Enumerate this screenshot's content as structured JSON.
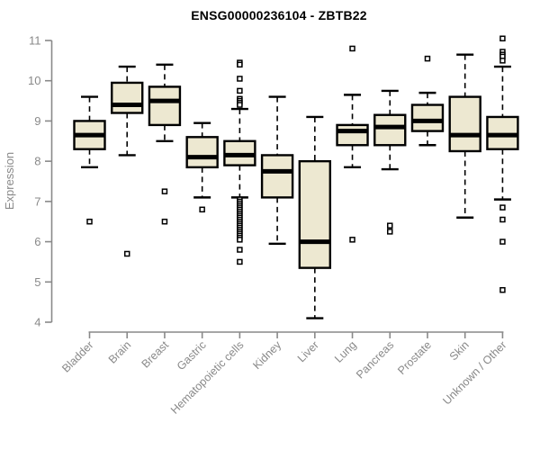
{
  "title": "ENSG00000236104 - ZBTB22",
  "chart_data": {
    "type": "boxplot",
    "title": "ENSG00000236104 - ZBTB22",
    "xlabel": "",
    "ylabel": "Expression",
    "ylim": [
      4,
      11
    ],
    "yticks": [
      4,
      5,
      6,
      7,
      8,
      9,
      10,
      11
    ],
    "grid": false,
    "legend": null,
    "categories": [
      "Bladder",
      "Brain",
      "Breast",
      "Gastric",
      "Hematopoietic cells",
      "Kidney",
      "Liver",
      "Lung",
      "Pancreas",
      "Prostate",
      "Skin",
      "Unknown / Other"
    ],
    "series": [
      {
        "category": "Bladder",
        "whisker_low": 7.85,
        "q1": 8.3,
        "median": 8.65,
        "q3": 9.0,
        "whisker_high": 9.6,
        "outliers": [
          6.5
        ]
      },
      {
        "category": "Brain",
        "whisker_low": 8.15,
        "q1": 9.2,
        "median": 9.4,
        "q3": 9.95,
        "whisker_high": 10.35,
        "outliers": [
          5.7
        ]
      },
      {
        "category": "Breast",
        "whisker_low": 8.5,
        "q1": 8.9,
        "median": 9.5,
        "q3": 9.85,
        "whisker_high": 10.4,
        "outliers": [
          7.25,
          6.5
        ]
      },
      {
        "category": "Gastric",
        "whisker_low": 7.1,
        "q1": 7.85,
        "median": 8.1,
        "q3": 8.6,
        "whisker_high": 8.95,
        "outliers": [
          6.8
        ]
      },
      {
        "category": "Hematopoietic cells",
        "whisker_low": 7.1,
        "q1": 7.9,
        "median": 8.15,
        "q3": 8.5,
        "whisker_high": 9.3,
        "outliers": [
          10.45,
          10.4,
          10.05,
          9.75,
          9.55,
          9.5,
          9.45,
          9.4,
          7.05,
          7.0,
          6.95,
          6.9,
          6.85,
          6.8,
          6.75,
          6.7,
          6.65,
          6.6,
          6.55,
          6.5,
          6.45,
          6.4,
          6.35,
          6.3,
          6.25,
          6.2,
          6.15,
          6.1,
          6.05,
          5.8,
          5.5
        ]
      },
      {
        "category": "Kidney",
        "whisker_low": 5.95,
        "q1": 7.1,
        "median": 7.75,
        "q3": 8.15,
        "whisker_high": 9.6,
        "outliers": []
      },
      {
        "category": "Liver",
        "whisker_low": 4.1,
        "q1": 5.35,
        "median": 6.0,
        "q3": 8.0,
        "whisker_high": 9.1,
        "outliers": []
      },
      {
        "category": "Lung",
        "whisker_low": 7.85,
        "q1": 8.4,
        "median": 8.75,
        "q3": 8.9,
        "whisker_high": 9.65,
        "outliers": [
          10.8,
          6.05
        ]
      },
      {
        "category": "Pancreas",
        "whisker_low": 7.8,
        "q1": 8.4,
        "median": 8.85,
        "q3": 9.15,
        "whisker_high": 9.75,
        "outliers": [
          6.4,
          6.25
        ]
      },
      {
        "category": "Prostate",
        "whisker_low": 8.4,
        "q1": 8.75,
        "median": 9.0,
        "q3": 9.4,
        "whisker_high": 9.7,
        "outliers": [
          10.55
        ]
      },
      {
        "category": "Skin",
        "whisker_low": 6.6,
        "q1": 8.25,
        "median": 8.65,
        "q3": 9.6,
        "whisker_high": 10.65,
        "outliers": []
      },
      {
        "category": "Unknown / Other",
        "whisker_low": 7.05,
        "q1": 8.3,
        "median": 8.65,
        "q3": 9.1,
        "whisker_high": 10.35,
        "outliers": [
          11.05,
          10.72,
          10.65,
          10.6,
          10.5,
          6.85,
          6.55,
          6.0,
          4.8
        ]
      }
    ],
    "colors": {
      "box_fill": "#ede8d1",
      "box_border": "#000000",
      "median": "#000000",
      "whisker": "#000000",
      "outlier_fill": "#ffffff",
      "outlier_border": "#000000",
      "axis": "#898989",
      "tick_label": "#898989",
      "title": "#000000",
      "background": "#ffffff"
    }
  }
}
